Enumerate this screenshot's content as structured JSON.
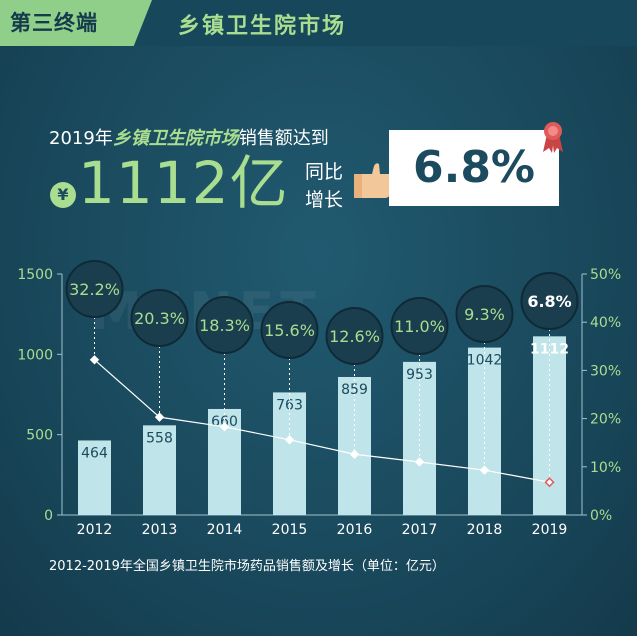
{
  "header": {
    "tag": "第三终端",
    "title": "乡镇卫生院市场"
  },
  "headline": {
    "prefix": "2019年",
    "highlight": "乡镇卫生院市场",
    "suffix": "销售额达到",
    "currency": "¥",
    "amount": "1112亿",
    "yoy_label_1": "同比",
    "yoy_label_2": "增长",
    "growth": "6.8%"
  },
  "watermark": "MENET",
  "caption": "2012-2019年全国乡镇卫生院市场药品销售额及增长（单位：亿元）",
  "colors": {
    "background": "#1c4a5e",
    "accent_green": "#a9dd8f",
    "bar": "#bfe4ea",
    "line": "#ffffff",
    "bubble": "#1a3e4e",
    "highlight_marker": "#e05a5a"
  },
  "chart_data": {
    "type": "bar",
    "categories": [
      "2012",
      "2013",
      "2014",
      "2015",
      "2016",
      "2017",
      "2018",
      "2019"
    ],
    "series": [
      {
        "name": "",
        "type": "bar",
        "axis": "left",
        "values": [
          464,
          558,
          660,
          763,
          859,
          953,
          1042,
          1112
        ]
      },
      {
        "name": "",
        "type": "line",
        "axis": "right",
        "values": [
          32.2,
          20.3,
          18.3,
          15.6,
          12.6,
          11.0,
          9.3,
          6.8
        ]
      }
    ],
    "bar_labels": [
      "464",
      "558",
      "660",
      "763",
      "859",
      "953",
      "1042",
      "1112"
    ],
    "growth_labels": [
      "32.2%",
      "20.3%",
      "18.3%",
      "15.6%",
      "12.6%",
      "11.0%",
      "9.3%",
      "6.8%"
    ],
    "y_left": {
      "range": [
        0,
        1500
      ],
      "ticks": [
        0,
        500,
        1000,
        1500
      ],
      "tick_labels": [
        "0",
        "500",
        "1000",
        "1500"
      ]
    },
    "y_right": {
      "range": [
        0,
        50
      ],
      "ticks": [
        0,
        10,
        20,
        30,
        40,
        50
      ],
      "tick_labels": [
        "0%",
        "10%",
        "20%",
        "30%",
        "40%",
        "50%"
      ]
    },
    "title": "",
    "xlabel": "",
    "ylabel": "",
    "grid": false
  }
}
